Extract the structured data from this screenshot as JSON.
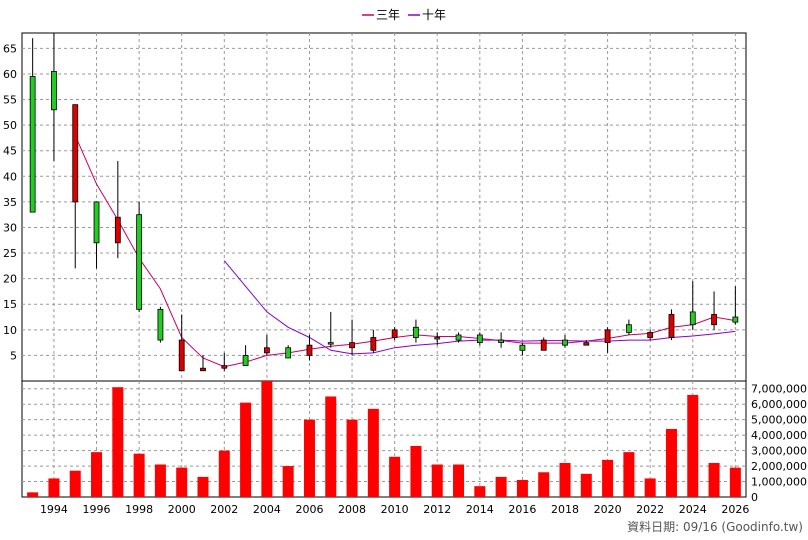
{
  "chart_data": [
    {
      "type": "candlestick",
      "legend": {
        "position": "top-center",
        "items": [
          {
            "label": "三年",
            "color": "#cc0066"
          },
          {
            "label": "十年",
            "color": "#8800cc"
          }
        ]
      },
      "y_ticks": [
        5,
        10,
        15,
        20,
        25,
        30,
        35,
        40,
        45,
        50,
        55,
        60,
        65
      ],
      "ylim": [
        0,
        68
      ],
      "grid": true,
      "up_color": "#22cc22",
      "down_color": "#dd0000",
      "candles": [
        {
          "year": 1993,
          "open": 33,
          "close": 59.5,
          "high": 67,
          "low": 33
        },
        {
          "year": 1994,
          "open": 53,
          "close": 60.5,
          "high": 68,
          "low": 43
        },
        {
          "year": 1995,
          "open": 54,
          "close": 35,
          "high": 54,
          "low": 22
        },
        {
          "year": 1996,
          "open": 27,
          "close": 35,
          "high": 35,
          "low": 22
        },
        {
          "year": 1997,
          "open": 32,
          "close": 27,
          "high": 43,
          "low": 24
        },
        {
          "year": 1998,
          "open": 14,
          "close": 32.5,
          "high": 35,
          "low": 13.5
        },
        {
          "year": 1999,
          "open": 8,
          "close": 14,
          "high": 14.5,
          "low": 7.5
        },
        {
          "year": 2000,
          "open": 8,
          "close": 2,
          "high": 13,
          "low": 2
        },
        {
          "year": 2001,
          "open": 2.5,
          "close": 2,
          "high": 5,
          "low": 2
        },
        {
          "year": 2002,
          "open": 3,
          "close": 2.5,
          "high": 5.5,
          "low": 2
        },
        {
          "year": 2003,
          "open": 3,
          "close": 5,
          "high": 7,
          "low": 3
        },
        {
          "year": 2004,
          "open": 6.5,
          "close": 5.5,
          "high": 9,
          "low": 5
        },
        {
          "year": 2005,
          "open": 4.5,
          "close": 6.5,
          "high": 7,
          "low": 4.5
        },
        {
          "year": 2006,
          "open": 7,
          "close": 5,
          "high": 9,
          "low": 4
        },
        {
          "year": 2007,
          "open": 7.5,
          "close": 7.5,
          "high": 13.5,
          "low": 6.5
        },
        {
          "year": 2008,
          "open": 7.5,
          "close": 6.5,
          "high": 12,
          "low": 5
        },
        {
          "year": 2009,
          "open": 8.5,
          "close": 6,
          "high": 10,
          "low": 5.5
        },
        {
          "year": 2010,
          "open": 10,
          "close": 8.5,
          "high": 10.5,
          "low": 8
        },
        {
          "year": 2011,
          "open": 8.5,
          "close": 10.5,
          "high": 12,
          "low": 7.5
        },
        {
          "year": 2012,
          "open": 8.5,
          "close": 8.5,
          "high": 9.5,
          "low": 7
        },
        {
          "year": 2013,
          "open": 8,
          "close": 9,
          "high": 9.5,
          "low": 7.5
        },
        {
          "year": 2014,
          "open": 7.5,
          "close": 9,
          "high": 9.5,
          "low": 7
        },
        {
          "year": 2015,
          "open": 7.5,
          "close": 8,
          "high": 9.5,
          "low": 6.5
        },
        {
          "year": 2016,
          "open": 6,
          "close": 7,
          "high": 7.5,
          "low": 5
        },
        {
          "year": 2017,
          "open": 8,
          "close": 6,
          "high": 8.5,
          "low": 6
        },
        {
          "year": 2018,
          "open": 7,
          "close": 8,
          "high": 9,
          "low": 6.5
        },
        {
          "year": 2019,
          "open": 7.5,
          "close": 7,
          "high": 8,
          "low": 7
        },
        {
          "year": 2020,
          "open": 10,
          "close": 7.5,
          "high": 10.5,
          "low": 5.5
        },
        {
          "year": 2021,
          "open": 9.5,
          "close": 11,
          "high": 12,
          "low": 9
        },
        {
          "year": 2022,
          "open": 9.5,
          "close": 8.5,
          "high": 10,
          "low": 8
        },
        {
          "year": 2023,
          "open": 13,
          "close": 8.5,
          "high": 14,
          "low": 8
        },
        {
          "year": 2024,
          "open": 11,
          "close": 13.5,
          "high": 19.5,
          "low": 10
        },
        {
          "year": 2025,
          "open": 13,
          "close": 11,
          "high": 17.5,
          "low": 10
        },
        {
          "year": 2026,
          "open": 11.5,
          "close": 12.5,
          "high": 18.5,
          "low": 11
        }
      ],
      "series": [
        {
          "name": "三年",
          "color": "#cc0066",
          "points": [
            [
              1995,
              48
            ],
            [
              1996,
              38.5
            ],
            [
              1997,
              31.5
            ],
            [
              1998,
              24
            ],
            [
              1999,
              18
            ],
            [
              2000,
              8.5
            ],
            [
              2001,
              4.5
            ],
            [
              2002,
              2.8
            ],
            [
              2003,
              3.7
            ],
            [
              2004,
              5
            ],
            [
              2005,
              5.5
            ],
            [
              2006,
              6.2
            ],
            [
              2007,
              6.8
            ],
            [
              2008,
              7.2
            ],
            [
              2009,
              7.8
            ],
            [
              2010,
              8.5
            ],
            [
              2011,
              9
            ],
            [
              2012,
              8.7
            ],
            [
              2013,
              8.7
            ],
            [
              2014,
              8.3
            ],
            [
              2015,
              7.9
            ],
            [
              2016,
              7.4
            ],
            [
              2017,
              7.4
            ],
            [
              2018,
              7.4
            ],
            [
              2019,
              7.8
            ],
            [
              2020,
              8.3
            ],
            [
              2021,
              9
            ],
            [
              2022,
              9.3
            ],
            [
              2023,
              10.5
            ],
            [
              2024,
              11
            ],
            [
              2025,
              12.5
            ],
            [
              2026,
              11.8
            ]
          ]
        },
        {
          "name": "十年",
          "color": "#8800cc",
          "points": [
            [
              2002,
              23.5
            ],
            [
              2003,
              18.5
            ],
            [
              2004,
              13.5
            ],
            [
              2005,
              10.5
            ],
            [
              2006,
              8.5
            ],
            [
              2007,
              6
            ],
            [
              2008,
              5.3
            ],
            [
              2009,
              5.5
            ],
            [
              2010,
              6.5
            ],
            [
              2011,
              7
            ],
            [
              2012,
              7.3
            ],
            [
              2013,
              7.8
            ],
            [
              2014,
              8
            ],
            [
              2015,
              8
            ],
            [
              2016,
              7.8
            ],
            [
              2017,
              7.9
            ],
            [
              2018,
              7.9
            ],
            [
              2019,
              7.8
            ],
            [
              2020,
              7.8
            ],
            [
              2021,
              8
            ],
            [
              2022,
              8
            ],
            [
              2023,
              8.5
            ],
            [
              2024,
              8.8
            ],
            [
              2025,
              9.2
            ],
            [
              2026,
              9.7
            ]
          ]
        }
      ]
    },
    {
      "type": "bar",
      "bar_color": "#ff0000",
      "y_ticks": [
        "0",
        "1,000,000",
        "2,000,000",
        "3,000,000",
        "4,000,000",
        "5,000,000",
        "6,000,000",
        "7,000,000"
      ],
      "ylim": [
        0,
        7500000
      ],
      "grid": true,
      "x_ticks": [
        "1994",
        "1996",
        "1998",
        "2000",
        "2002",
        "2004",
        "2006",
        "2008",
        "2010",
        "2012",
        "2014",
        "2016",
        "2018",
        "2020",
        "2022",
        "2024",
        "2026"
      ],
      "bars": [
        {
          "year": 1993,
          "value": 300000
        },
        {
          "year": 1994,
          "value": 1200000
        },
        {
          "year": 1995,
          "value": 1700000
        },
        {
          "year": 1996,
          "value": 2900000
        },
        {
          "year": 1997,
          "value": 7100000
        },
        {
          "year": 1998,
          "value": 2800000
        },
        {
          "year": 1999,
          "value": 2100000
        },
        {
          "year": 2000,
          "value": 1900000
        },
        {
          "year": 2001,
          "value": 1300000
        },
        {
          "year": 2002,
          "value": 3000000
        },
        {
          "year": 2003,
          "value": 6100000
        },
        {
          "year": 2004,
          "value": 7500000
        },
        {
          "year": 2005,
          "value": 2000000
        },
        {
          "year": 2006,
          "value": 5000000
        },
        {
          "year": 2007,
          "value": 6500000
        },
        {
          "year": 2008,
          "value": 5000000
        },
        {
          "year": 2009,
          "value": 5700000
        },
        {
          "year": 2010,
          "value": 2600000
        },
        {
          "year": 2011,
          "value": 3300000
        },
        {
          "year": 2012,
          "value": 2100000
        },
        {
          "year": 2013,
          "value": 2100000
        },
        {
          "year": 2014,
          "value": 700000
        },
        {
          "year": 2015,
          "value": 1300000
        },
        {
          "year": 2016,
          "value": 1100000
        },
        {
          "year": 2017,
          "value": 1600000
        },
        {
          "year": 2018,
          "value": 2200000
        },
        {
          "year": 2019,
          "value": 1500000
        },
        {
          "year": 2020,
          "value": 2400000
        },
        {
          "year": 2021,
          "value": 2900000
        },
        {
          "year": 2022,
          "value": 1200000
        },
        {
          "year": 2023,
          "value": 4400000
        },
        {
          "year": 2024,
          "value": 6600000
        },
        {
          "year": 2025,
          "value": 2200000
        },
        {
          "year": 2026,
          "value": 1900000
        }
      ]
    }
  ],
  "footer": {
    "source": "資料日期: 09/16  (Goodinfo.tw)"
  }
}
